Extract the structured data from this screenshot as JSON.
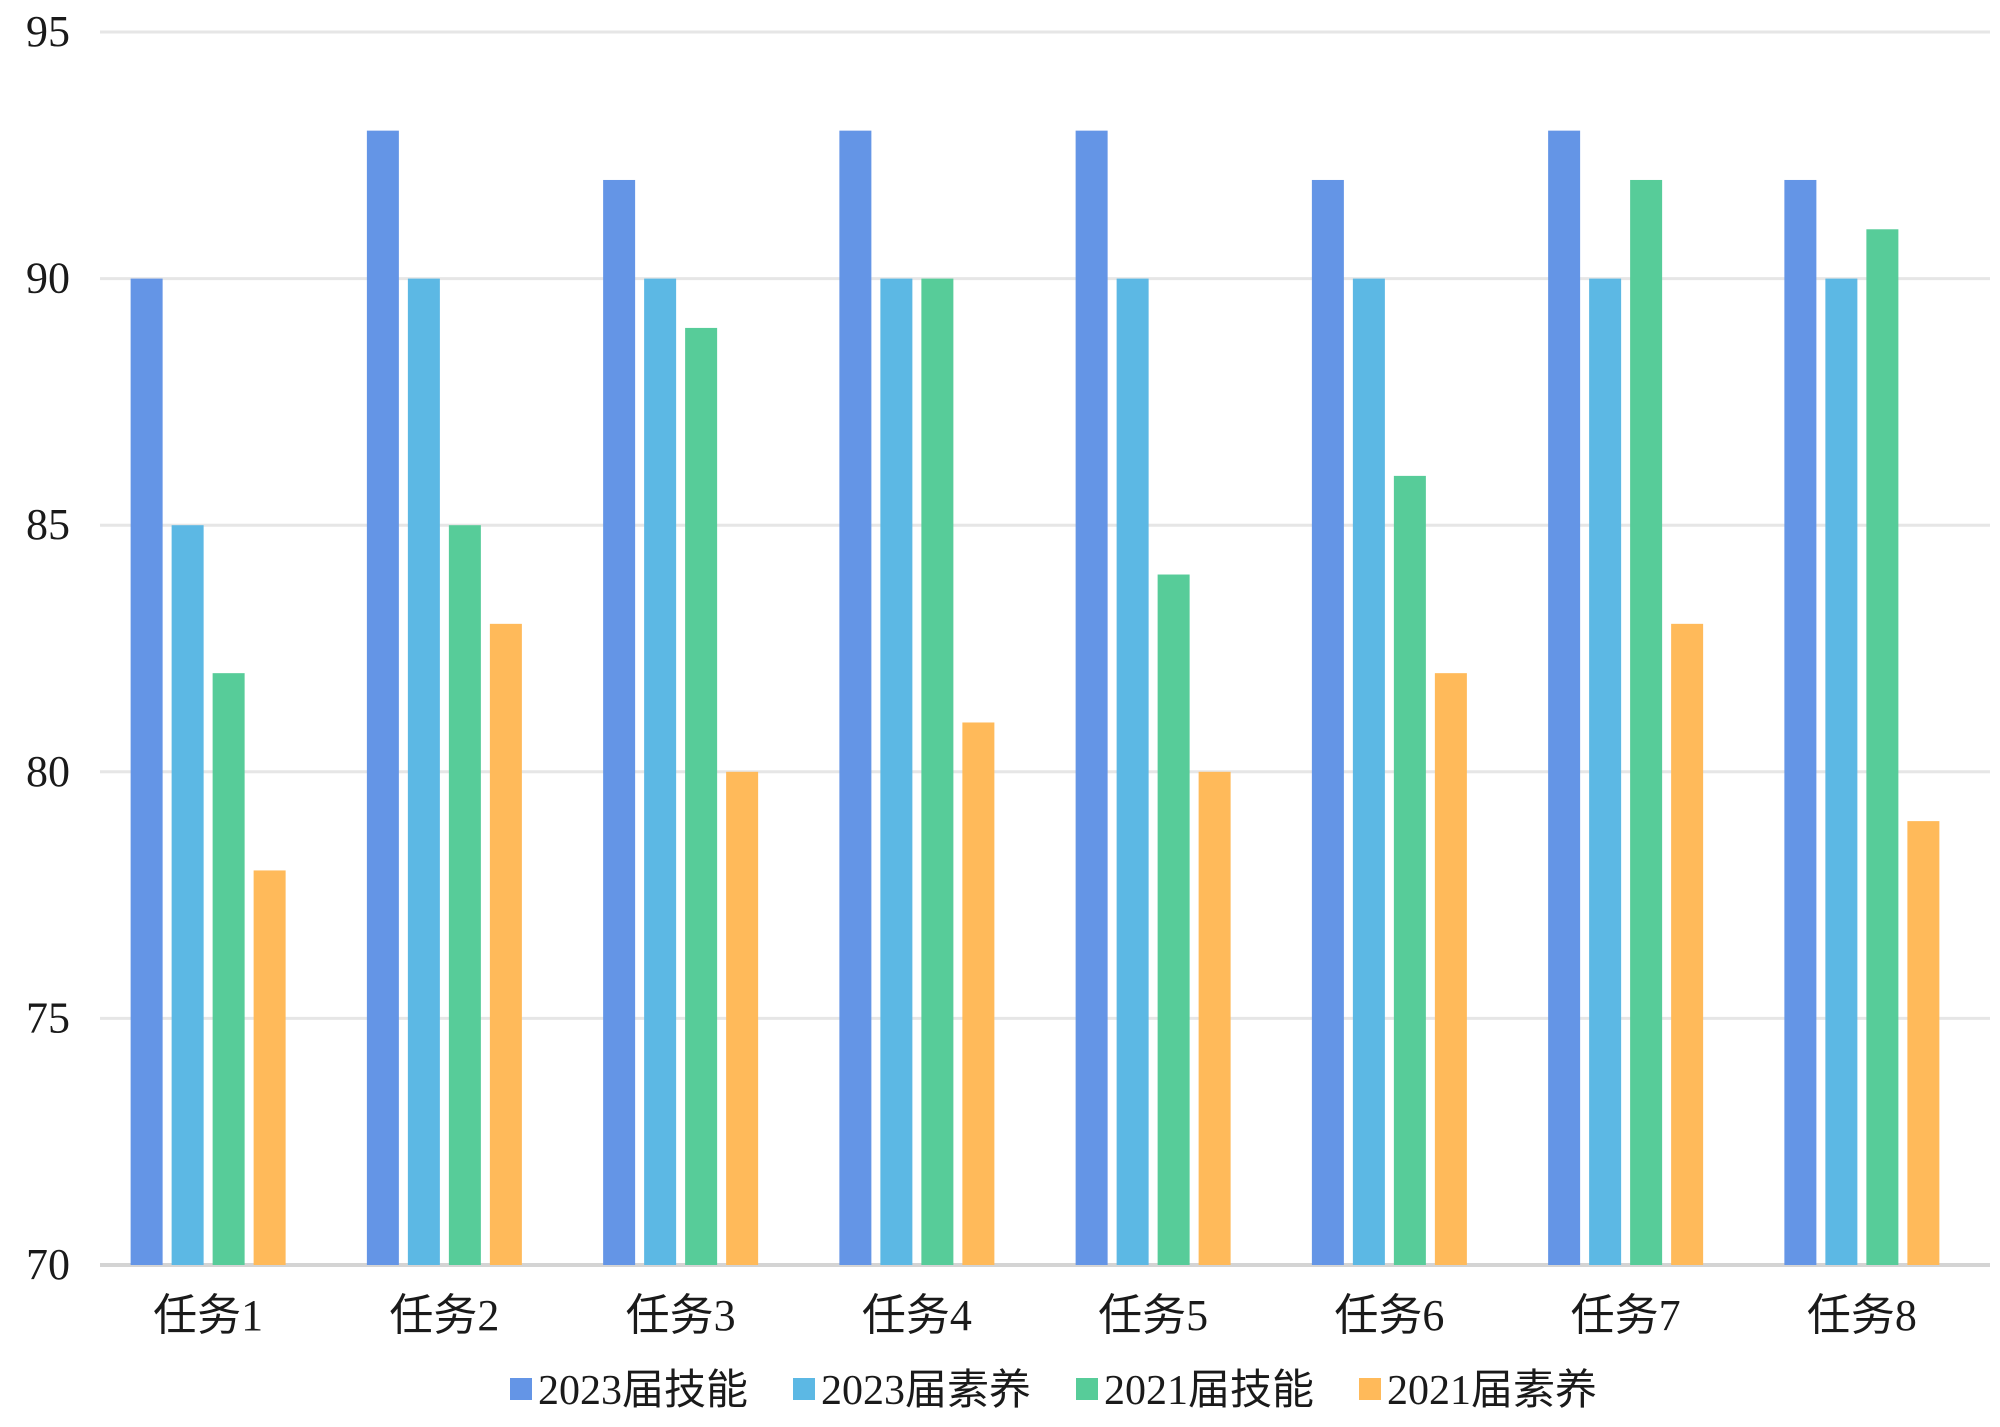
{
  "chart_data": {
    "type": "bar",
    "categories": [
      "任务1",
      "任务2",
      "任务3",
      "任务4",
      "任务5",
      "任务6",
      "任务7",
      "任务8"
    ],
    "series": [
      {
        "name": "2023届技能",
        "color": "#6495e6",
        "values": [
          90,
          93,
          92,
          93,
          93,
          92,
          93,
          92
        ]
      },
      {
        "name": "2023届素养",
        "color": "#5cb8e4",
        "values": [
          85,
          90,
          90,
          90,
          90,
          90,
          90,
          90
        ]
      },
      {
        "name": "2021届技能",
        "color": "#57cc99",
        "values": [
          82,
          85,
          89,
          90,
          84,
          86,
          92,
          91
        ]
      },
      {
        "name": "2021届素养",
        "color": "#ffba5a",
        "values": [
          78,
          83,
          80,
          81,
          80,
          82,
          83,
          79
        ]
      }
    ],
    "ylim": [
      70,
      95
    ],
    "yticks": [
      70,
      75,
      80,
      85,
      90,
      95
    ],
    "grid": true,
    "legend_position": "bottom",
    "title": "",
    "xlabel": "",
    "ylabel": ""
  }
}
